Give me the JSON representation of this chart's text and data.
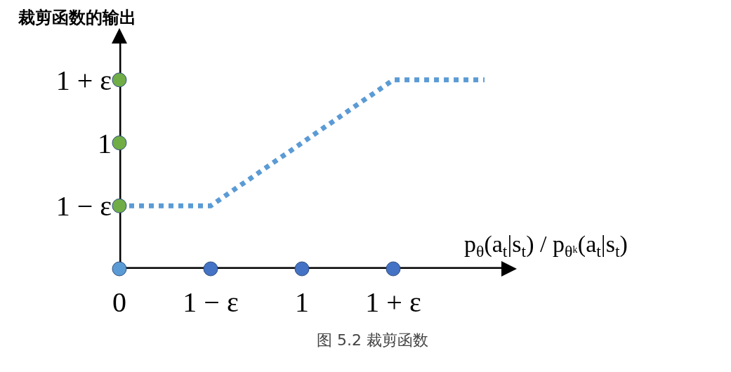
{
  "chart_data": {
    "type": "line",
    "ylabel": "裁剪函数的输出",
    "xlabel": "p$_{θ}$(a$_{t}$|s$_{t}$) / p$_{θᵏ}$(a$_{t}$|s$_{t}$)",
    "annotations": [
      "图 5.2 裁剪函数"
    ],
    "xlim": [
      0,
      2.1
    ],
    "ylim": [
      0,
      1.8
    ],
    "xticks": [
      {
        "value": 0,
        "label": "0"
      },
      {
        "value": 0.5,
        "label": "1 − ε"
      },
      {
        "value": 1,
        "label": "1"
      },
      {
        "value": 1.5,
        "label": "1 + ε"
      }
    ],
    "yticks": [
      {
        "value": 0.5,
        "label": "1 − ε"
      },
      {
        "value": 1,
        "label": "1"
      },
      {
        "value": 1.5,
        "label": "1 + ε"
      }
    ],
    "grid": false,
    "series": [
      {
        "type": "line",
        "color": "#5b9bd5",
        "line_style": "dotted",
        "marker": "none",
        "x": [
          0,
          0.5,
          1.5,
          2
        ],
        "values": [
          0.5,
          0.5,
          1.5,
          1.5
        ]
      },
      {
        "type": "scatter",
        "color": "#70ad47",
        "marker": "circle",
        "x": [
          0,
          0,
          0
        ],
        "values": [
          0.5,
          1,
          1.5
        ]
      },
      {
        "type": "scatter",
        "color": "#4472c4",
        "marker": "circle",
        "x": [
          0.5,
          1,
          1.5
        ],
        "values": [
          0,
          0,
          0
        ]
      },
      {
        "type": "scatter",
        "color": "#5b9bd5",
        "marker": "circle",
        "x": [
          0
        ],
        "values": [
          0
        ]
      }
    ]
  }
}
